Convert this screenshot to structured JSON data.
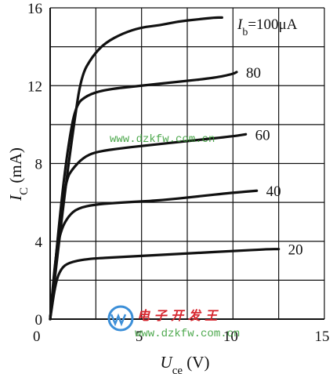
{
  "chart_data": {
    "type": "line",
    "xlabel": {
      "main": "U",
      "sub": "ce",
      "unit": " (V)"
    },
    "ylabel": {
      "main": "I",
      "sub": "C",
      "unit": " (mA)"
    },
    "xlim": [
      0,
      15
    ],
    "ylim": [
      0,
      16
    ],
    "xticks": [
      0,
      5,
      10,
      15
    ],
    "yticks": [
      0,
      4,
      8,
      12,
      16
    ],
    "x_tick_labels": [
      "0",
      "5",
      "10",
      "15"
    ],
    "y_tick_labels": [
      "0",
      "4",
      "8",
      "12",
      "16"
    ],
    "grid": true,
    "curve_param": {
      "main": "I",
      "sub": "b",
      "eq": "=100μA"
    },
    "series": [
      {
        "name": "20",
        "label": "20",
        "points": [
          [
            0,
            0
          ],
          [
            0.3,
            1.9
          ],
          [
            0.6,
            2.6
          ],
          [
            1,
            2.9
          ],
          [
            2,
            3.1
          ],
          [
            4,
            3.2
          ],
          [
            6,
            3.3
          ],
          [
            8,
            3.4
          ],
          [
            10,
            3.5
          ],
          [
            12,
            3.6
          ],
          [
            12.5,
            3.6
          ]
        ]
      },
      {
        "name": "40",
        "label": "40",
        "points": [
          [
            0,
            0
          ],
          [
            0.3,
            3.3
          ],
          [
            0.6,
            4.6
          ],
          [
            1,
            5.3
          ],
          [
            1.5,
            5.7
          ],
          [
            2.5,
            5.9
          ],
          [
            4,
            6.0
          ],
          [
            6,
            6.1
          ],
          [
            8,
            6.3
          ],
          [
            10,
            6.5
          ],
          [
            11.3,
            6.6
          ]
        ]
      },
      {
        "name": "60",
        "label": "60",
        "points": [
          [
            0,
            0
          ],
          [
            0.5,
            5.0
          ],
          [
            0.9,
            7.2
          ],
          [
            1.2,
            7.7
          ],
          [
            1.8,
            8.3
          ],
          [
            2.5,
            8.6
          ],
          [
            4,
            8.8
          ],
          [
            6,
            9.0
          ],
          [
            8,
            9.2
          ],
          [
            10,
            9.4
          ],
          [
            10.7,
            9.5
          ]
        ]
      },
      {
        "name": "80",
        "label": "80",
        "points": [
          [
            0,
            0
          ],
          [
            0.6,
            6.0
          ],
          [
            1.0,
            9.0
          ],
          [
            1.4,
            11.0
          ],
          [
            2,
            11.5
          ],
          [
            3,
            11.8
          ],
          [
            5,
            12.0
          ],
          [
            7,
            12.2
          ],
          [
            9,
            12.4
          ],
          [
            10,
            12.6
          ],
          [
            10.2,
            12.7
          ]
        ]
      },
      {
        "name": "100",
        "label": "",
        "points": [
          [
            0,
            0
          ],
          [
            0.8,
            6.5
          ],
          [
            1.3,
            10.0
          ],
          [
            1.7,
            12.5
          ],
          [
            2.3,
            13.5
          ],
          [
            3,
            14.2
          ],
          [
            4,
            14.7
          ],
          [
            5,
            15.0
          ],
          [
            6,
            15.1
          ],
          [
            7,
            15.3
          ],
          [
            8,
            15.4
          ],
          [
            9,
            15.5
          ],
          [
            9.4,
            15.5
          ]
        ]
      }
    ],
    "watermarks": [
      "www.dzkfw.com.cn",
      "电 子 开 发 王",
      "www.dzkfw.com.cn"
    ]
  }
}
